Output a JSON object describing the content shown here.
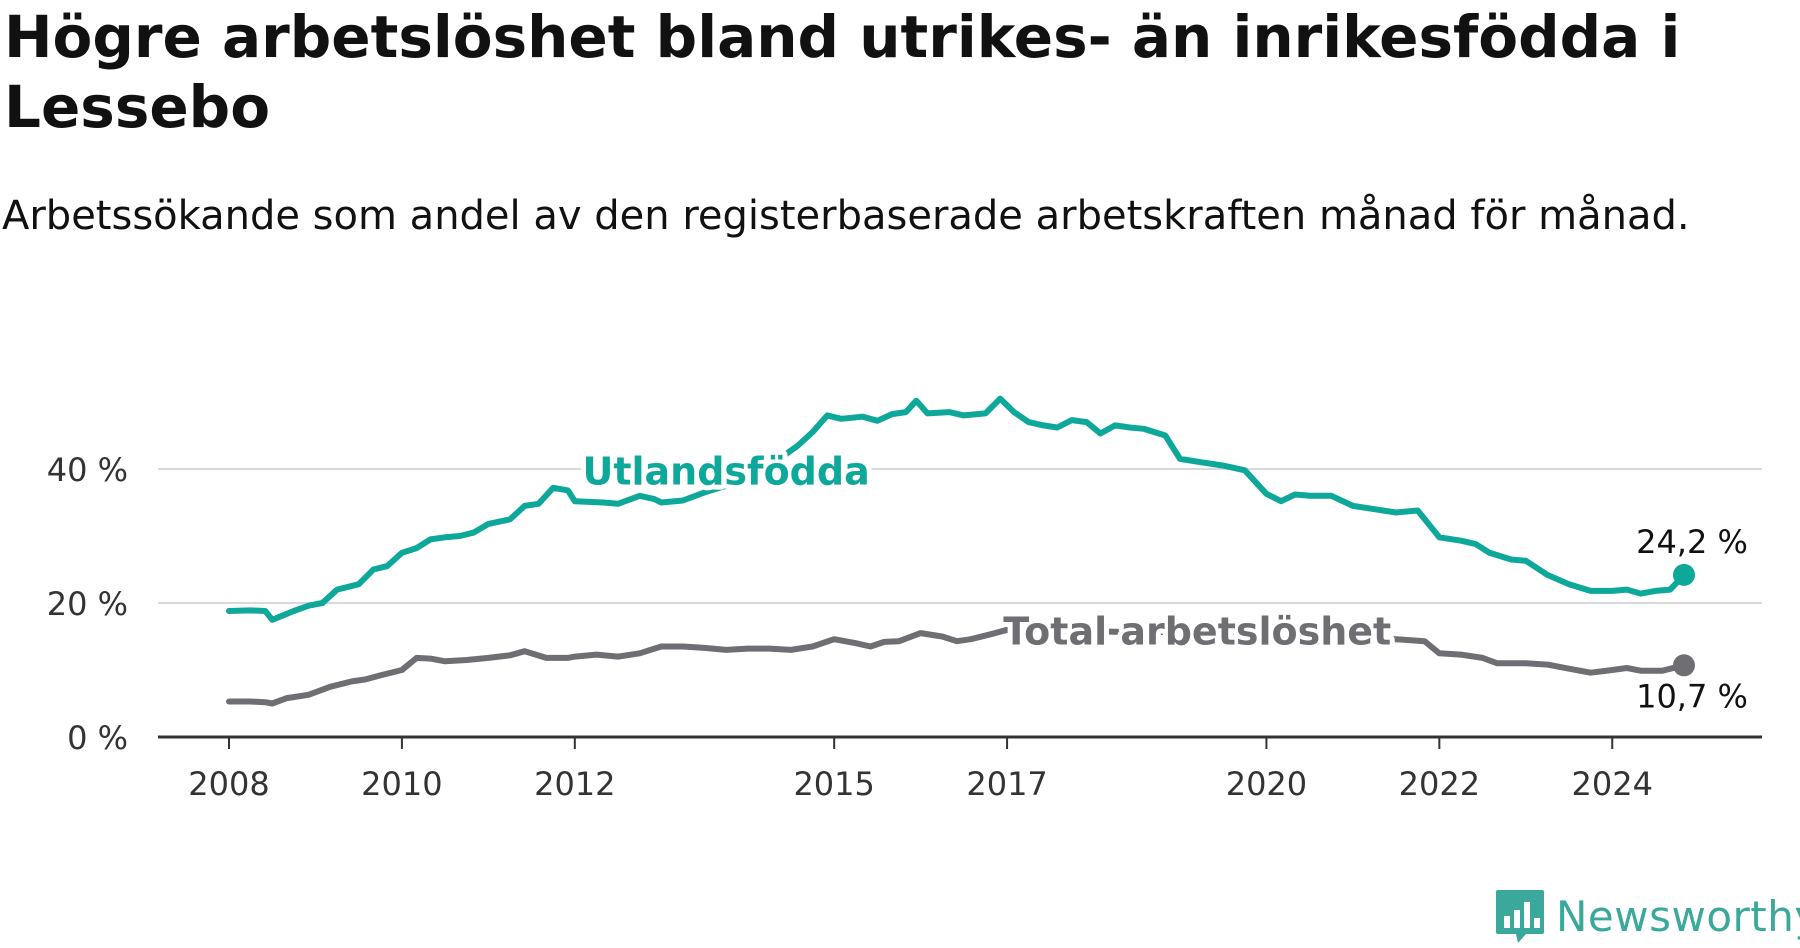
{
  "title": "Högre arbetslöshet bland utrikes- än inrikesfödda i Lessebo",
  "subtitle": "Arbetssökande som andel av den registerbaserade arbetskraften månad för månad.",
  "brand": {
    "name": "Newsworthy",
    "color": "#3aa89b"
  },
  "chart_data": {
    "type": "line",
    "title": "Högre arbetslöshet bland utrikes- än inrikesfödda i Lessebo",
    "subtitle": "Arbetssökande som andel av den registerbaserade arbetskraften månad för månad.",
    "xlabel": "",
    "ylabel": "",
    "xlim": [
      2008,
      2024.83
    ],
    "ylim": [
      0,
      55
    ],
    "x_ticks": [
      "2008",
      "2010",
      "2012",
      "2015",
      "2017",
      "2020",
      "2022",
      "2024"
    ],
    "y_ticks": [
      "0 %",
      "20 %",
      "40 %"
    ],
    "grid": "horizontal",
    "series": [
      {
        "name": "Utlandsfödda",
        "color": "#0ea89b",
        "end_label": "24,2 %",
        "points": [
          [
            2008.0,
            18.8
          ],
          [
            2008.25,
            18.9
          ],
          [
            2008.42,
            18.8
          ],
          [
            2008.5,
            17.5
          ],
          [
            2008.75,
            18.8
          ],
          [
            2008.92,
            19.6
          ],
          [
            2009.08,
            20.0
          ],
          [
            2009.25,
            22.0
          ],
          [
            2009.5,
            22.8
          ],
          [
            2009.67,
            25.0
          ],
          [
            2009.83,
            25.5
          ],
          [
            2010.0,
            27.5
          ],
          [
            2010.17,
            28.2
          ],
          [
            2010.33,
            29.5
          ],
          [
            2010.5,
            29.8
          ],
          [
            2010.67,
            30.0
          ],
          [
            2010.83,
            30.5
          ],
          [
            2011.0,
            31.8
          ],
          [
            2011.25,
            32.5
          ],
          [
            2011.42,
            34.5
          ],
          [
            2011.58,
            34.8
          ],
          [
            2011.75,
            37.2
          ],
          [
            2011.92,
            36.8
          ],
          [
            2012.0,
            35.2
          ],
          [
            2012.33,
            35.0
          ],
          [
            2012.5,
            34.8
          ],
          [
            2012.75,
            36.0
          ],
          [
            2012.92,
            35.5
          ],
          [
            2013.0,
            35.0
          ],
          [
            2013.25,
            35.3
          ],
          [
            2013.5,
            36.5
          ],
          [
            2013.75,
            37.5
          ],
          [
            2014.0,
            38.5
          ],
          [
            2014.25,
            40.0
          ],
          [
            2014.42,
            42.0
          ],
          [
            2014.58,
            43.5
          ],
          [
            2014.75,
            45.5
          ],
          [
            2014.92,
            48.0
          ],
          [
            2015.08,
            47.5
          ],
          [
            2015.33,
            47.8
          ],
          [
            2015.5,
            47.2
          ],
          [
            2015.67,
            48.2
          ],
          [
            2015.83,
            48.5
          ],
          [
            2015.95,
            50.2
          ],
          [
            2016.08,
            48.3
          ],
          [
            2016.33,
            48.5
          ],
          [
            2016.5,
            48.0
          ],
          [
            2016.75,
            48.3
          ],
          [
            2016.92,
            50.5
          ],
          [
            2017.08,
            48.5
          ],
          [
            2017.25,
            47.0
          ],
          [
            2017.42,
            46.5
          ],
          [
            2017.58,
            46.2
          ],
          [
            2017.75,
            47.3
          ],
          [
            2017.92,
            47.0
          ],
          [
            2018.08,
            45.3
          ],
          [
            2018.25,
            46.5
          ],
          [
            2018.42,
            46.2
          ],
          [
            2018.58,
            46.0
          ],
          [
            2018.83,
            45.0
          ],
          [
            2019.0,
            41.5
          ],
          [
            2019.25,
            41.0
          ],
          [
            2019.5,
            40.5
          ],
          [
            2019.75,
            39.8
          ],
          [
            2020.0,
            36.3
          ],
          [
            2020.17,
            35.2
          ],
          [
            2020.33,
            36.2
          ],
          [
            2020.5,
            36.0
          ],
          [
            2020.75,
            36.0
          ],
          [
            2021.0,
            34.5
          ],
          [
            2021.25,
            34.0
          ],
          [
            2021.5,
            33.5
          ],
          [
            2021.75,
            33.8
          ],
          [
            2022.0,
            29.8
          ],
          [
            2022.25,
            29.3
          ],
          [
            2022.42,
            28.8
          ],
          [
            2022.58,
            27.5
          ],
          [
            2022.83,
            26.5
          ],
          [
            2023.0,
            26.3
          ],
          [
            2023.25,
            24.2
          ],
          [
            2023.5,
            22.8
          ],
          [
            2023.75,
            21.8
          ],
          [
            2024.0,
            21.8
          ],
          [
            2024.17,
            22.0
          ],
          [
            2024.33,
            21.4
          ],
          [
            2024.5,
            21.8
          ],
          [
            2024.67,
            22.0
          ],
          [
            2024.83,
            24.2
          ]
        ]
      },
      {
        "name": "Total arbetslöshet",
        "color": "#6e6e73",
        "end_label": "10,7 %",
        "points": [
          [
            2008.0,
            5.3
          ],
          [
            2008.25,
            5.3
          ],
          [
            2008.42,
            5.2
          ],
          [
            2008.5,
            5.0
          ],
          [
            2008.67,
            5.8
          ],
          [
            2008.92,
            6.3
          ],
          [
            2009.17,
            7.5
          ],
          [
            2009.42,
            8.3
          ],
          [
            2009.58,
            8.6
          ],
          [
            2009.75,
            9.2
          ],
          [
            2010.0,
            10.0
          ],
          [
            2010.17,
            11.8
          ],
          [
            2010.33,
            11.7
          ],
          [
            2010.5,
            11.3
          ],
          [
            2010.75,
            11.5
          ],
          [
            2011.0,
            11.8
          ],
          [
            2011.25,
            12.2
          ],
          [
            2011.42,
            12.8
          ],
          [
            2011.67,
            11.8
          ],
          [
            2011.92,
            11.8
          ],
          [
            2012.0,
            12.0
          ],
          [
            2012.25,
            12.3
          ],
          [
            2012.5,
            12.0
          ],
          [
            2012.75,
            12.5
          ],
          [
            2013.0,
            13.5
          ],
          [
            2013.25,
            13.5
          ],
          [
            2013.5,
            13.3
          ],
          [
            2013.75,
            13.0
          ],
          [
            2014.0,
            13.2
          ],
          [
            2014.25,
            13.2
          ],
          [
            2014.5,
            13.0
          ],
          [
            2014.75,
            13.5
          ],
          [
            2015.0,
            14.6
          ],
          [
            2015.25,
            14.0
          ],
          [
            2015.42,
            13.5
          ],
          [
            2015.58,
            14.2
          ],
          [
            2015.75,
            14.3
          ],
          [
            2016.0,
            15.5
          ],
          [
            2016.25,
            15.0
          ],
          [
            2016.42,
            14.3
          ],
          [
            2016.58,
            14.6
          ],
          [
            2016.83,
            15.4
          ],
          [
            2017.0,
            16.0
          ],
          [
            2017.5,
            15.5
          ],
          [
            2018.0,
            15.8
          ],
          [
            2018.5,
            15.6
          ],
          [
            2019.0,
            15.7
          ],
          [
            2019.5,
            15.3
          ],
          [
            2020.0,
            15.2
          ],
          [
            2020.5,
            15.0
          ],
          [
            2021.0,
            14.8
          ],
          [
            2021.5,
            14.6
          ],
          [
            2021.83,
            14.3
          ],
          [
            2022.0,
            12.5
          ],
          [
            2022.25,
            12.3
          ],
          [
            2022.5,
            11.8
          ],
          [
            2022.67,
            11.0
          ],
          [
            2023.0,
            11.0
          ],
          [
            2023.25,
            10.8
          ],
          [
            2023.5,
            10.2
          ],
          [
            2023.75,
            9.6
          ],
          [
            2024.0,
            10.0
          ],
          [
            2024.17,
            10.3
          ],
          [
            2024.33,
            9.9
          ],
          [
            2024.58,
            9.9
          ],
          [
            2024.83,
            10.7
          ]
        ]
      }
    ],
    "annotations": [
      {
        "text": "Utlandsfödda",
        "series": 0,
        "x": 2013.75,
        "y": 39.5
      },
      {
        "text": "Total arbetslöshet",
        "series": 1,
        "x": 2019.2,
        "y": 15.6
      }
    ]
  }
}
